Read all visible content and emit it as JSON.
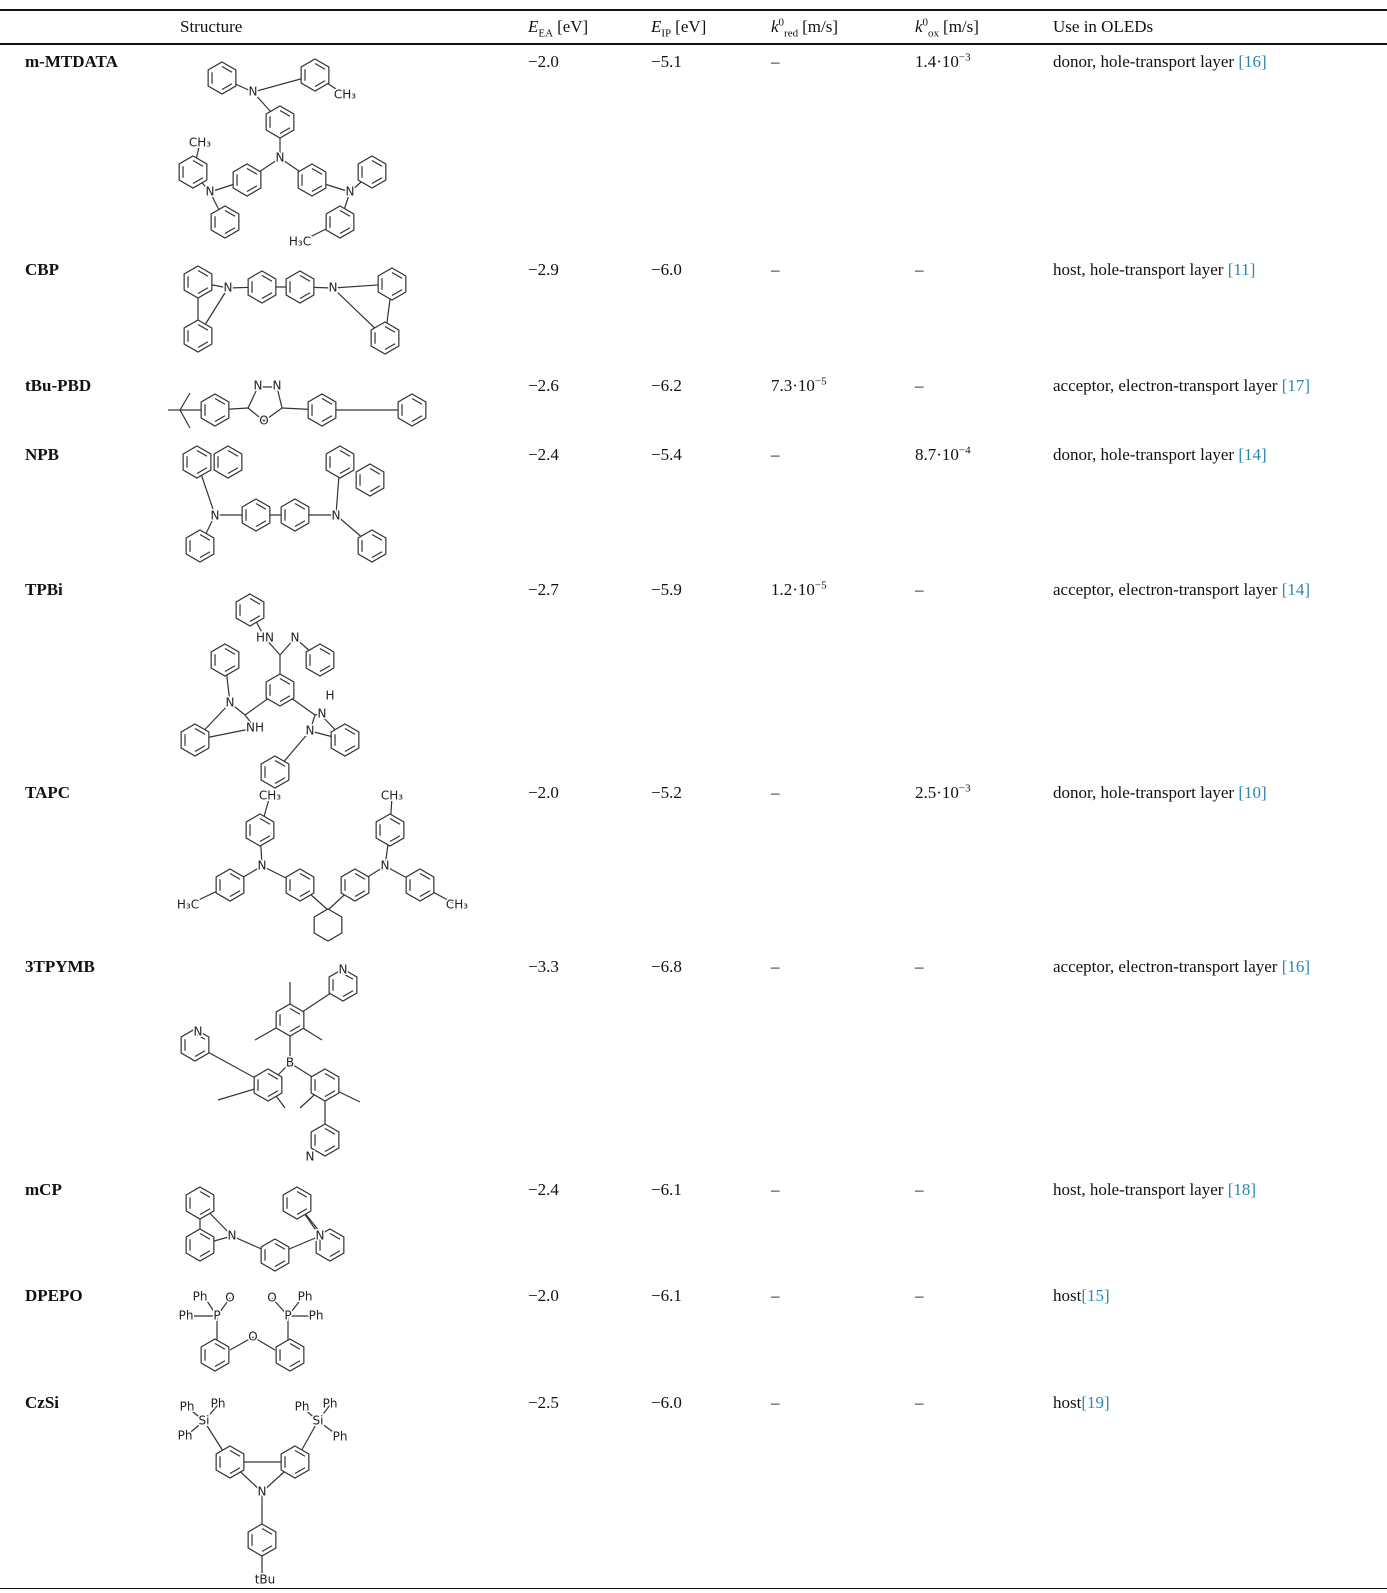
{
  "table": {
    "header": [
      "Structure",
      {
        "symbol": "E",
        "sub": "EA",
        "unit": "[eV]"
      },
      {
        "symbol": "E",
        "sub": "IP",
        "unit": "[eV]"
      },
      {
        "symbol": "k",
        "sup": "0",
        "sub": "red",
        "unit": "[m/s]"
      },
      {
        "symbol": "k",
        "sup": "0",
        "sub": "ox",
        "unit": "[m/s]"
      },
      "Use in OLEDs"
    ],
    "rows": [
      {
        "name": "m-MTDATA",
        "structure_labels": [
          "N",
          "N",
          "N",
          "N",
          "CH₃",
          "CH₃",
          "H₃C"
        ],
        "e_ea": "−2.0",
        "e_ip": "−5.1",
        "k_red": "–",
        "k_ox": {
          "mantissa": "1.4·10",
          "exponent": "−3"
        },
        "use": {
          "text": "donor, hole-transport layer ",
          "ref": "[16]"
        }
      },
      {
        "name": "CBP",
        "structure_labels": [
          "N",
          "N"
        ],
        "e_ea": "−2.9",
        "e_ip": "−6.0",
        "k_red": "–",
        "k_ox": "–",
        "use": {
          "text": "host, hole-transport layer ",
          "ref": "[11]"
        }
      },
      {
        "name": "tBu-PBD",
        "structure_labels": [
          "N",
          "N",
          "O"
        ],
        "e_ea": "−2.6",
        "e_ip": "−6.2",
        "k_red": {
          "mantissa": "7.3·10",
          "exponent": "−5"
        },
        "k_ox": "–",
        "use": {
          "text": "acceptor, electron-transport layer ",
          "ref": "[17]"
        }
      },
      {
        "name": "NPB",
        "structure_labels": [
          "N",
          "N"
        ],
        "e_ea": "−2.4",
        "e_ip": "−5.4",
        "k_red": "–",
        "k_ox": {
          "mantissa": "8.7·10",
          "exponent": "−4"
        },
        "use": {
          "text": "donor, hole-transport layer ",
          "ref": "[14]"
        }
      },
      {
        "name": "TPBi",
        "structure_labels": [
          "HN",
          "N",
          "N",
          "NH",
          "H",
          "N",
          "N"
        ],
        "e_ea": "−2.7",
        "e_ip": "−5.9",
        "k_red": {
          "mantissa": "1.2·10",
          "exponent": "−5"
        },
        "k_ox": "–",
        "use": {
          "text": "acceptor, electron-transport layer ",
          "ref": "[14]"
        }
      },
      {
        "name": "TAPC",
        "structure_labels": [
          "CH₃",
          "CH₃",
          "N",
          "N",
          "H₃C",
          "CH₃"
        ],
        "e_ea": "−2.0",
        "e_ip": "−5.2",
        "k_red": "–",
        "k_ox": {
          "mantissa": "2.5·10",
          "exponent": "−3"
        },
        "use": {
          "text": "donor, hole-transport layer ",
          "ref": "[10]"
        }
      },
      {
        "name": "3TPYMB",
        "structure_labels": [
          "N",
          "N",
          "B",
          "N"
        ],
        "e_ea": "−3.3",
        "e_ip": "−6.8",
        "k_red": "–",
        "k_ox": "–",
        "use": {
          "text": "acceptor, electron-transport layer ",
          "ref": "[16]"
        }
      },
      {
        "name": "mCP",
        "structure_labels": [
          "N",
          "N"
        ],
        "e_ea": "−2.4",
        "e_ip": "−6.1",
        "k_red": "–",
        "k_ox": "–",
        "use": {
          "text": "host, hole-transport layer ",
          "ref": "[18]"
        }
      },
      {
        "name": "DPEPO",
        "structure_labels": [
          "Ph",
          "Ph",
          "P",
          "O",
          "O",
          "P",
          "Ph",
          "Ph",
          "O"
        ],
        "e_ea": "−2.0",
        "e_ip": "−6.1",
        "k_red": "–",
        "k_ox": "–",
        "use": {
          "text": "host",
          "ref": "[15]"
        }
      },
      {
        "name": "CzSi",
        "structure_labels": [
          "Ph",
          "Ph",
          "Si",
          "Ph",
          "Ph",
          "Ph",
          "Si",
          "Ph",
          "N",
          "tBu"
        ],
        "e_ea": "−2.5",
        "e_ip": "−6.0",
        "k_red": "–",
        "k_ox": "–",
        "use": {
          "text": "host",
          "ref": "[19]"
        }
      }
    ]
  }
}
